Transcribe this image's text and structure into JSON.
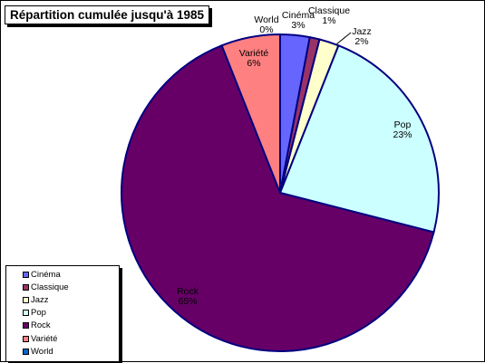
{
  "chart_data": {
    "type": "pie",
    "title": "Répartition cumulée jusqu'à 1985",
    "categories": [
      "Cinéma",
      "Classique",
      "Jazz",
      "Pop",
      "Rock",
      "Variété",
      "World"
    ],
    "values": [
      3,
      1,
      2,
      23,
      65,
      6,
      0
    ],
    "value_labels": [
      "3%",
      "1%",
      "2%",
      "23%",
      "65%",
      "6%",
      "0%"
    ],
    "colors": [
      "#6666ff",
      "#993366",
      "#ffffcc",
      "#ccffff",
      "#660066",
      "#ff8080",
      "#0066cc"
    ],
    "legend": [
      "Cinéma",
      "Classique",
      "Jazz",
      "Pop",
      "Rock",
      "Variété",
      "World"
    ],
    "legend_position": "bottom-left",
    "slice_outline": "#000080"
  }
}
